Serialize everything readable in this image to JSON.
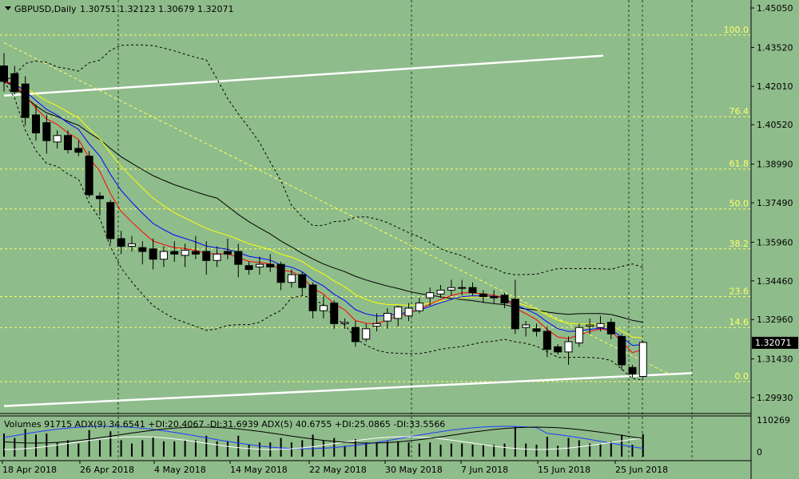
{
  "header": {
    "symbol": "GBPUSD,Daily",
    "ohlc": "1.30751 1.32123 1.30679 1.32071"
  },
  "indicator_header": "Volumes 91715  ADX(9) 34.6541 +DI:20.4067 -DI:31.6939  ADX(5) 40.6755 +DI:25.0865 -DI:33.5566",
  "price_axis": {
    "labels": [
      "1.45050",
      "1.43520",
      "1.42010",
      "1.40520",
      "1.38990",
      "1.37490",
      "1.35960",
      "1.34460",
      "1.32960",
      "1.31430",
      "1.29930"
    ],
    "current_price": "1.32071"
  },
  "volume_axis": {
    "labels": [
      "110269",
      "0"
    ]
  },
  "date_axis": {
    "labels": [
      "18 Apr 2018",
      "26 Apr 2018",
      "4 May 2018",
      "14 May 2018",
      "22 May 2018",
      "30 May 2018",
      "7 Jun 2018",
      "15 Jun 2018",
      "25 Jun 2018"
    ]
  },
  "fibonacci": [
    {
      "label": "100.0",
      "price": 1.44
    },
    {
      "label": "76.4",
      "price": 1.4083
    },
    {
      "label": "61.8",
      "price": 1.388
    },
    {
      "label": "50.0",
      "price": 1.3725
    },
    {
      "label": "38.2",
      "price": 1.357
    },
    {
      "label": "23.6",
      "price": 1.3385
    },
    {
      "label": "14.6",
      "price": 1.3265
    },
    {
      "label": "0.0",
      "price": 1.3055
    }
  ],
  "colors": {
    "background": "#8fbc8b",
    "bull": "#ffffff",
    "bear": "#000000",
    "fib": "#ffff66",
    "ma_red": "#ff0000",
    "ma_blue": "#0000ff",
    "ma_yellow": "#ffff00",
    "ma_black": "#000000",
    "trend": "#ffffff"
  },
  "chart_data": {
    "type": "candlestick",
    "title": "GBPUSD,Daily",
    "ylim": [
      1.294,
      1.453
    ],
    "candles": [
      {
        "date": "2018-04-17",
        "o": 1.428,
        "h": 1.433,
        "l": 1.418,
        "c": 1.422
      },
      {
        "date": "2018-04-18",
        "o": 1.425,
        "h": 1.428,
        "l": 1.417,
        "c": 1.418
      },
      {
        "date": "2018-04-19",
        "o": 1.421,
        "h": 1.424,
        "l": 1.405,
        "c": 1.408
      },
      {
        "date": "2018-04-20",
        "o": 1.409,
        "h": 1.413,
        "l": 1.399,
        "c": 1.402
      },
      {
        "date": "2018-04-23",
        "o": 1.406,
        "h": 1.409,
        "l": 1.394,
        "c": 1.399
      },
      {
        "date": "2018-04-24",
        "o": 1.3985,
        "h": 1.403,
        "l": 1.396,
        "c": 1.401
      },
      {
        "date": "2018-04-25",
        "o": 1.401,
        "h": 1.403,
        "l": 1.394,
        "c": 1.3955
      },
      {
        "date": "2018-04-26",
        "o": 1.396,
        "h": 1.399,
        "l": 1.393,
        "c": 1.3945
      },
      {
        "date": "2018-04-27",
        "o": 1.393,
        "h": 1.395,
        "l": 1.377,
        "c": 1.378
      },
      {
        "date": "2018-04-30",
        "o": 1.3775,
        "h": 1.379,
        "l": 1.37,
        "c": 1.3765
      },
      {
        "date": "2018-05-01",
        "o": 1.375,
        "h": 1.376,
        "l": 1.359,
        "c": 1.361
      },
      {
        "date": "2018-05-02",
        "o": 1.361,
        "h": 1.364,
        "l": 1.355,
        "c": 1.358
      },
      {
        "date": "2018-05-03",
        "o": 1.358,
        "h": 1.362,
        "l": 1.356,
        "c": 1.359
      },
      {
        "date": "2018-05-04",
        "o": 1.3575,
        "h": 1.36,
        "l": 1.351,
        "c": 1.356
      },
      {
        "date": "2018-05-07",
        "o": 1.357,
        "h": 1.361,
        "l": 1.349,
        "c": 1.353
      },
      {
        "date": "2018-05-08",
        "o": 1.353,
        "h": 1.358,
        "l": 1.35,
        "c": 1.356
      },
      {
        "date": "2018-05-09",
        "o": 1.356,
        "h": 1.36,
        "l": 1.352,
        "c": 1.355
      },
      {
        "date": "2018-05-10",
        "o": 1.3545,
        "h": 1.359,
        "l": 1.35,
        "c": 1.3565
      },
      {
        "date": "2018-05-11",
        "o": 1.356,
        "h": 1.362,
        "l": 1.353,
        "c": 1.355
      },
      {
        "date": "2018-05-14",
        "o": 1.356,
        "h": 1.36,
        "l": 1.347,
        "c": 1.3525
      },
      {
        "date": "2018-05-15",
        "o": 1.3525,
        "h": 1.358,
        "l": 1.35,
        "c": 1.355
      },
      {
        "date": "2018-05-16",
        "o": 1.356,
        "h": 1.361,
        "l": 1.353,
        "c": 1.355
      },
      {
        "date": "2018-05-17",
        "o": 1.356,
        "h": 1.359,
        "l": 1.346,
        "c": 1.351
      },
      {
        "date": "2018-05-18",
        "o": 1.3505,
        "h": 1.352,
        "l": 1.347,
        "c": 1.349
      },
      {
        "date": "2018-05-21",
        "o": 1.35,
        "h": 1.354,
        "l": 1.347,
        "c": 1.351
      },
      {
        "date": "2018-05-22",
        "o": 1.351,
        "h": 1.355,
        "l": 1.348,
        "c": 1.35
      },
      {
        "date": "2018-05-23",
        "o": 1.351,
        "h": 1.352,
        "l": 1.341,
        "c": 1.344
      },
      {
        "date": "2018-05-24",
        "o": 1.344,
        "h": 1.349,
        "l": 1.342,
        "c": 1.347
      },
      {
        "date": "2018-05-25",
        "o": 1.347,
        "h": 1.348,
        "l": 1.339,
        "c": 1.342
      },
      {
        "date": "2018-05-28",
        "o": 1.343,
        "h": 1.344,
        "l": 1.33,
        "c": 1.333
      },
      {
        "date": "2018-05-29",
        "o": 1.333,
        "h": 1.339,
        "l": 1.33,
        "c": 1.335
      },
      {
        "date": "2018-05-30",
        "o": 1.336,
        "h": 1.337,
        "l": 1.326,
        "c": 1.328
      },
      {
        "date": "2018-05-31",
        "o": 1.328,
        "h": 1.33,
        "l": 1.326,
        "c": 1.3285
      },
      {
        "date": "2018-06-01",
        "o": 1.3265,
        "h": 1.329,
        "l": 1.319,
        "c": 1.321
      },
      {
        "date": "2018-06-04",
        "o": 1.322,
        "h": 1.328,
        "l": 1.321,
        "c": 1.326
      },
      {
        "date": "2018-06-05",
        "o": 1.327,
        "h": 1.332,
        "l": 1.325,
        "c": 1.328
      },
      {
        "date": "2018-06-06",
        "o": 1.329,
        "h": 1.334,
        "l": 1.326,
        "c": 1.332
      },
      {
        "date": "2018-06-07",
        "o": 1.33,
        "h": 1.335,
        "l": 1.327,
        "c": 1.3345
      },
      {
        "date": "2018-06-08",
        "o": 1.331,
        "h": 1.336,
        "l": 1.329,
        "c": 1.334
      },
      {
        "date": "2018-06-11",
        "o": 1.333,
        "h": 1.338,
        "l": 1.332,
        "c": 1.336
      },
      {
        "date": "2018-06-12",
        "o": 1.338,
        "h": 1.342,
        "l": 1.335,
        "c": 1.34
      },
      {
        "date": "2018-06-13",
        "o": 1.3395,
        "h": 1.343,
        "l": 1.338,
        "c": 1.341
      },
      {
        "date": "2018-06-14",
        "o": 1.341,
        "h": 1.345,
        "l": 1.339,
        "c": 1.342
      },
      {
        "date": "2018-06-15",
        "o": 1.342,
        "h": 1.345,
        "l": 1.339,
        "c": 1.342
      },
      {
        "date": "2018-06-18",
        "o": 1.342,
        "h": 1.344,
        "l": 1.339,
        "c": 1.34
      },
      {
        "date": "2018-06-19",
        "o": 1.3395,
        "h": 1.341,
        "l": 1.336,
        "c": 1.3385
      },
      {
        "date": "2018-06-20",
        "o": 1.3385,
        "h": 1.341,
        "l": 1.336,
        "c": 1.338
      },
      {
        "date": "2018-06-21",
        "o": 1.339,
        "h": 1.34,
        "l": 1.334,
        "c": 1.336
      },
      {
        "date": "2018-06-22",
        "o": 1.3375,
        "h": 1.345,
        "l": 1.324,
        "c": 1.326
      },
      {
        "date": "2018-06-25",
        "o": 1.3265,
        "h": 1.329,
        "l": 1.323,
        "c": 1.3275
      },
      {
        "date": "2018-06-26",
        "o": 1.326,
        "h": 1.328,
        "l": 1.323,
        "c": 1.325
      },
      {
        "date": "2018-06-27",
        "o": 1.325,
        "h": 1.327,
        "l": 1.315,
        "c": 1.318
      },
      {
        "date": "2018-06-28",
        "o": 1.319,
        "h": 1.32,
        "l": 1.316,
        "c": 1.317
      },
      {
        "date": "2018-06-29",
        "o": 1.317,
        "h": 1.323,
        "l": 1.312,
        "c": 1.321
      },
      {
        "date": "2018-07-02",
        "o": 1.3205,
        "h": 1.328,
        "l": 1.319,
        "c": 1.3265
      },
      {
        "date": "2018-07-03",
        "o": 1.327,
        "h": 1.33,
        "l": 1.324,
        "c": 1.3275
      },
      {
        "date": "2018-07-04",
        "o": 1.3265,
        "h": 1.331,
        "l": 1.325,
        "c": 1.328
      },
      {
        "date": "2018-07-05",
        "o": 1.3285,
        "h": 1.33,
        "l": 1.322,
        "c": 1.324
      },
      {
        "date": "2018-07-06",
        "o": 1.323,
        "h": 1.324,
        "l": 1.31,
        "c": 1.312
      },
      {
        "date": "2018-07-09",
        "o": 1.311,
        "h": 1.312,
        "l": 1.307,
        "c": 1.3085
      },
      {
        "date": "2018-07-10",
        "o": 1.3075,
        "h": 1.3212,
        "l": 1.3068,
        "c": 1.3207
      }
    ]
  }
}
